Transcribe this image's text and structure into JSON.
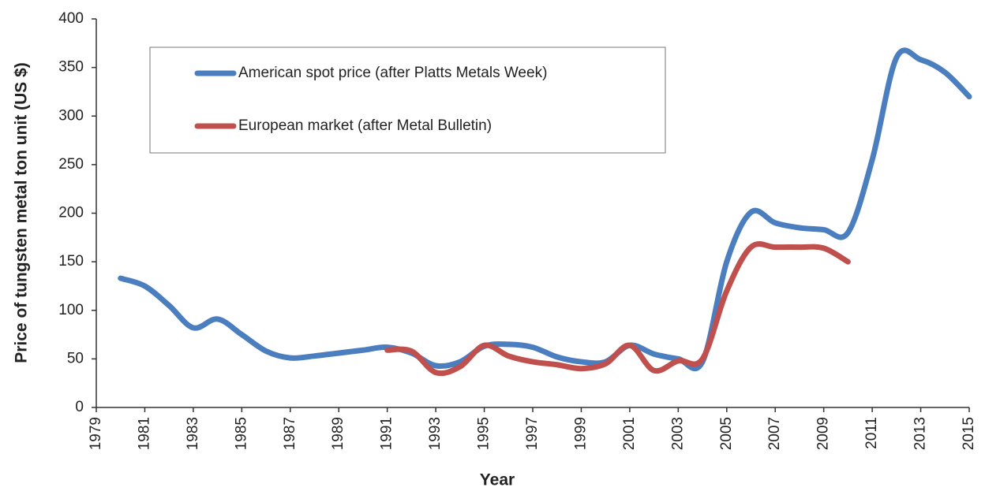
{
  "chart_data": {
    "type": "line",
    "y_label": "Price of tungsten metal ton unit (US $)",
    "x_label": "Year",
    "x": [
      1980,
      1981,
      1982,
      1983,
      1984,
      1985,
      1986,
      1987,
      1988,
      1989,
      1990,
      1991,
      1992,
      1993,
      1994,
      1995,
      1996,
      1997,
      1998,
      1999,
      2000,
      2001,
      2002,
      2003,
      2004,
      2005,
      2006,
      2007,
      2008,
      2009,
      2010,
      2011,
      2012,
      2013,
      2014,
      2015
    ],
    "series": [
      {
        "name": "American spot price (after Platts Metals Week)",
        "color": "#4a7ebf",
        "values": [
          133,
          125,
          105,
          82,
          91,
          75,
          58,
          51,
          53,
          56,
          59,
          62,
          56,
          43,
          47,
          63,
          65,
          62,
          52,
          47,
          47,
          64,
          55,
          50,
          47,
          150,
          201,
          190,
          185,
          183,
          180,
          255,
          360,
          358,
          345,
          320
        ]
      },
      {
        "name": "European market (after Metal Bulletin)",
        "color": "#c0504d",
        "values": [
          null,
          null,
          null,
          null,
          null,
          null,
          null,
          null,
          null,
          null,
          null,
          59,
          58,
          36,
          42,
          64,
          53,
          47,
          44,
          40,
          45,
          64,
          38,
          48,
          50,
          120,
          165,
          165,
          165,
          164,
          150,
          null,
          null,
          null,
          null,
          null
        ]
      }
    ],
    "xlim": [
      1979,
      2015
    ],
    "xticks": [
      1979,
      1981,
      1983,
      1985,
      1987,
      1989,
      1991,
      1993,
      1995,
      1997,
      1999,
      2001,
      2003,
      2005,
      2007,
      2009,
      2011,
      2013,
      2015
    ],
    "ylim": [
      0,
      400
    ],
    "yticks": [
      0,
      50,
      100,
      150,
      200,
      250,
      300,
      350,
      400
    ],
    "legend": "upper left"
  }
}
